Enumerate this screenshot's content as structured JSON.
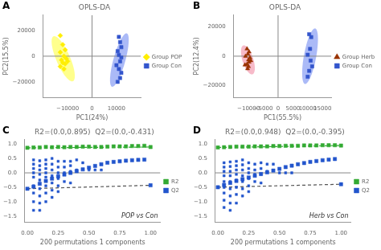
{
  "chart_data": [
    {
      "type": "scatter",
      "title": "OPLS-DA",
      "xlabel": "PC1(24%)",
      "ylabel": "PC2(15.5%)",
      "annotations": [
        "A"
      ],
      "legend": "right",
      "grid": false,
      "series": [
        {
          "name": "Group POP",
          "color": "#FFEE00",
          "marker": "diamond",
          "x": [
            -13000,
            -12000,
            -11000,
            -13000,
            -11500,
            -12500,
            -10500,
            -11000,
            -12000,
            -13000,
            -11500,
            -10000
          ],
          "y": [
            16000,
            9000,
            5000,
            3000,
            0,
            -3000,
            -2000,
            -6000,
            -5000,
            -8000,
            -10000,
            -4000
          ]
        },
        {
          "name": "Group Con",
          "color": "#3355CC",
          "marker": "square",
          "x": [
            11000,
            11500,
            12000,
            10500,
            11000,
            12000,
            11500,
            10000,
            11000,
            12000,
            11500,
            10500
          ],
          "y": [
            15000,
            11000,
            7000,
            4000,
            1000,
            -1000,
            -4000,
            -7000,
            -10000,
            -13000,
            -17000,
            -20000
          ]
        }
      ],
      "ellipses": [
        {
          "cx": -11800,
          "cy": -2000,
          "width": 6000,
          "height": 36000,
          "angle": 12,
          "color": "#FFFF00"
        },
        {
          "cx": 11200,
          "cy": -3000,
          "width": 5000,
          "height": 42000,
          "angle": -8,
          "color": "#4466EE"
        }
      ],
      "hlines": [
        0
      ],
      "vlines": [
        0
      ],
      "xlim": [
        -20000,
        20000
      ],
      "ylim": [
        -32000,
        32000
      ],
      "xticks": [
        {
          "value": -10000,
          "label": "−10000"
        },
        0,
        10000
      ],
      "yticks": [
        {
          "value": -20000,
          "label": "−20000"
        },
        0,
        20000
      ]
    },
    {
      "type": "scatter",
      "title": "OPLS-DA",
      "xlabel": "PC1(55.5%)",
      "ylabel": "PC2(12.4%)",
      "annotations": [
        "B"
      ],
      "legend": "right",
      "grid": false,
      "series": [
        {
          "name": "Group Herb",
          "color": "#993300",
          "marker": "triangle",
          "x": [
            -10500,
            -9800,
            -10200,
            -11000,
            -9500,
            -10000,
            -9800,
            -10500,
            -10000,
            -11200,
            -9200,
            -10300
          ],
          "y": [
            5000,
            3000,
            1500,
            0,
            -1000,
            -2500,
            -4000,
            -5500,
            -7000,
            -6000,
            -3000,
            -8500
          ]
        },
        {
          "name": "Group Con",
          "color": "#3355CC",
          "marker": "square",
          "x": [
            10500,
            11200,
            10800,
            10000,
            11000,
            11500,
            10500,
            10000
          ],
          "y": [
            15000,
            13000,
            5000,
            1000,
            -3000,
            -7000,
            -10000,
            -14000
          ]
        }
      ],
      "ellipses": [
        {
          "cx": -10200,
          "cy": -2500,
          "width": 3800,
          "height": 20000,
          "angle": 8,
          "color": "#EE6688"
        },
        {
          "cx": 10800,
          "cy": 0,
          "width": 4200,
          "height": 38000,
          "angle": -5,
          "color": "#4466EE"
        }
      ],
      "hlines": [
        0
      ],
      "vlines": [
        0
      ],
      "xlim": [
        -15000,
        18000
      ],
      "ylim": [
        -28000,
        28000
      ],
      "xticks": [
        {
          "value": -10000,
          "label": "−10000"
        },
        {
          "value": -5000,
          "label": "−5000"
        },
        0,
        5000,
        10000,
        15000
      ],
      "yticks": [
        {
          "value": -20000,
          "label": "−20000"
        },
        0,
        20000
      ]
    },
    {
      "type": "scatter",
      "title": "R2=(0.0,0.895)  Q2=(0.0,-0.431)",
      "xlabel": "200 permutations 1 components",
      "annotations": [
        "C",
        "POP vs Con"
      ],
      "legend": "right",
      "grid": false,
      "series": [
        {
          "type": "scatter",
          "color": "#2255CC",
          "marker": "square",
          "x": [
            0.05,
            0.05,
            0.05,
            0.05,
            0.05,
            0.05,
            0.05,
            0.05,
            0.05,
            0.1,
            0.1,
            0.1,
            0.1,
            0.1,
            0.1,
            0.1,
            0.1,
            0.1,
            0.15,
            0.15,
            0.15,
            0.15,
            0.15,
            0.15,
            0.15,
            0.15,
            0.2,
            0.2,
            0.2,
            0.2,
            0.2,
            0.2,
            0.2,
            0.25,
            0.25,
            0.25,
            0.25,
            0.25,
            0.25,
            0.3,
            0.3,
            0.3,
            0.3,
            0.35,
            0.35,
            0.35,
            0.35,
            0.4,
            0.4,
            0.45,
            0.5,
            0.55,
            0.6
          ],
          "y": [
            0.45,
            0.3,
            0.15,
            0.0,
            -0.15,
            -0.45,
            -0.7,
            -1.0,
            -1.3,
            0.42,
            0.25,
            0.1,
            -0.05,
            -0.25,
            -0.55,
            -0.8,
            -1.05,
            -1.3,
            0.45,
            0.3,
            0.15,
            0.0,
            -0.15,
            -0.45,
            -0.7,
            -1.0,
            0.5,
            0.3,
            0.1,
            -0.1,
            -0.35,
            -0.6,
            -0.85,
            0.4,
            0.2,
            0.0,
            -0.2,
            -0.45,
            -0.65,
            0.4,
            0.2,
            0.0,
            -0.3,
            0.4,
            0.25,
            0.05,
            -0.35,
            0.45,
            0.1,
            0.35,
            0.1,
            0.1,
            0.1
          ]
        },
        {
          "name": "R2",
          "type": "scatter",
          "color": "#33AA33",
          "marker": "square",
          "x": [
            0.0,
            0.05,
            0.1,
            0.15,
            0.2,
            0.25,
            0.3,
            0.35,
            0.4,
            0.45,
            0.5,
            0.55,
            0.6,
            0.65,
            0.7,
            0.75,
            0.8,
            0.85,
            0.9,
            0.95,
            1.0
          ],
          "y": [
            0.87,
            0.88,
            0.88,
            0.9,
            0.89,
            0.9,
            0.89,
            0.9,
            0.9,
            0.91,
            0.91,
            0.9,
            0.9,
            0.91,
            0.92,
            0.92,
            0.92,
            0.93,
            0.93,
            0.94,
            0.895
          ]
        },
        {
          "type": "line",
          "color": "#33AA33",
          "line_style": "dashed",
          "x": [
            0.0,
            1.0
          ],
          "y": [
            0.87,
            0.895
          ]
        },
        {
          "name": "Q2",
          "type": "scatter",
          "color": "#2255CC",
          "marker": "square",
          "x": [
            0.0,
            0.05,
            0.1,
            0.15,
            0.2,
            0.25,
            0.3,
            0.35,
            0.4,
            0.45,
            0.5,
            0.55,
            0.6,
            0.65,
            0.7,
            0.75,
            0.8,
            0.85,
            0.9,
            0.95,
            1.0
          ],
          "y": [
            -0.55,
            -0.48,
            -0.38,
            -0.28,
            -0.2,
            -0.12,
            -0.06,
            0.0,
            0.06,
            0.12,
            0.18,
            0.24,
            0.3,
            0.35,
            0.38,
            0.4,
            0.42,
            0.44,
            0.45,
            0.46,
            -0.431
          ]
        },
        {
          "type": "line",
          "color": "#555555",
          "line_style": "dashed",
          "x": [
            0.0,
            1.0
          ],
          "y": [
            -0.55,
            -0.431
          ]
        }
      ],
      "hlines": [
        0
      ],
      "xlim": [
        -0.02,
        1.08
      ],
      "ylim": [
        -1.7,
        1.15
      ],
      "xticks": [
        {
          "value": 0.0,
          "label": "0.00"
        },
        {
          "value": 0.25,
          "label": "0.25"
        },
        {
          "value": 0.5,
          "label": "0.50"
        },
        {
          "value": 0.75,
          "label": "0.75"
        },
        {
          "value": 1.0,
          "label": "1.00"
        }
      ],
      "yticks": [
        {
          "value": -1.5,
          "label": "−1.5"
        },
        {
          "value": -1.0,
          "label": "−1.0"
        },
        {
          "value": -0.5,
          "label": "−0.5"
        },
        {
          "value": 0.0,
          "label": "0.0"
        },
        0.5,
        {
          "value": 1.0,
          "label": "1.0"
        }
      ]
    },
    {
      "type": "scatter",
      "title": "R2=(0.0,0.948)  Q2=(0.0,-0.395)",
      "xlabel": "200 permutations 1 components",
      "annotations": [
        "D",
        "Herb vs Con"
      ],
      "legend": "right",
      "grid": false,
      "series": [
        {
          "type": "scatter",
          "color": "#2255CC",
          "marker": "square",
          "x": [
            0.05,
            0.05,
            0.05,
            0.05,
            0.05,
            0.05,
            0.05,
            0.05,
            0.05,
            0.1,
            0.1,
            0.1,
            0.1,
            0.1,
            0.1,
            0.1,
            0.1,
            0.1,
            0.15,
            0.15,
            0.15,
            0.15,
            0.15,
            0.15,
            0.15,
            0.15,
            0.2,
            0.2,
            0.2,
            0.2,
            0.2,
            0.2,
            0.2,
            0.25,
            0.25,
            0.25,
            0.25,
            0.25,
            0.25,
            0.3,
            0.3,
            0.3,
            0.3,
            0.35,
            0.35,
            0.35,
            0.35,
            0.4,
            0.4,
            0.45,
            0.5,
            0.55,
            0.6
          ],
          "y": [
            0.35,
            0.2,
            0.05,
            -0.1,
            -0.3,
            -0.5,
            -0.7,
            -0.95,
            -1.2,
            0.38,
            0.22,
            0.05,
            -0.1,
            -0.3,
            -0.55,
            -0.8,
            -1.05,
            -1.3,
            0.4,
            0.25,
            0.1,
            -0.05,
            -0.25,
            -0.5,
            -0.75,
            -1.05,
            0.45,
            0.28,
            0.1,
            -0.1,
            -0.3,
            -0.55,
            -0.8,
            0.35,
            0.15,
            0.0,
            -0.2,
            -0.45,
            -0.65,
            0.3,
            0.1,
            -0.05,
            -0.3,
            0.35,
            0.15,
            -0.05,
            -0.35,
            0.3,
            0.05,
            0.3,
            0.0,
            0.0,
            0.0
          ]
        },
        {
          "name": "R2",
          "type": "scatter",
          "color": "#33AA33",
          "marker": "square",
          "x": [
            0.0,
            0.05,
            0.1,
            0.15,
            0.2,
            0.25,
            0.3,
            0.35,
            0.4,
            0.45,
            0.5,
            0.55,
            0.6,
            0.65,
            0.7,
            0.75,
            0.8,
            0.85,
            0.9,
            0.95,
            1.0
          ],
          "y": [
            0.88,
            0.89,
            0.9,
            0.91,
            0.91,
            0.91,
            0.92,
            0.92,
            0.92,
            0.93,
            0.93,
            0.94,
            0.94,
            0.94,
            0.95,
            0.95,
            0.95,
            0.96,
            0.96,
            0.96,
            0.948
          ]
        },
        {
          "type": "line",
          "color": "#33AA33",
          "line_style": "dashed",
          "x": [
            0.0,
            1.0
          ],
          "y": [
            0.88,
            0.948
          ]
        },
        {
          "name": "Q2",
          "type": "scatter",
          "color": "#2255CC",
          "marker": "square",
          "x": [
            0.0,
            0.05,
            0.1,
            0.15,
            0.2,
            0.25,
            0.3,
            0.35,
            0.4,
            0.45,
            0.5,
            0.55,
            0.6,
            0.65,
            0.7,
            0.75,
            0.8,
            0.85,
            0.9,
            0.95,
            1.0
          ],
          "y": [
            -0.5,
            -0.42,
            -0.35,
            -0.28,
            -0.22,
            -0.16,
            -0.1,
            -0.04,
            0.02,
            0.08,
            0.14,
            0.2,
            0.25,
            0.3,
            0.34,
            0.38,
            0.41,
            0.44,
            0.46,
            0.48,
            -0.395
          ]
        },
        {
          "type": "line",
          "color": "#555555",
          "line_style": "dashed",
          "x": [
            0.0,
            1.0
          ],
          "y": [
            -0.5,
            -0.395
          ]
        }
      ],
      "hlines": [
        0
      ],
      "xlim": [
        -0.02,
        1.08
      ],
      "ylim": [
        -1.7,
        1.15
      ],
      "xticks": [
        {
          "value": 0.0,
          "label": "0.00"
        },
        {
          "value": 0.25,
          "label": "0.25"
        },
        {
          "value": 0.5,
          "label": "0.50"
        },
        {
          "value": 0.75,
          "label": "0.75"
        },
        {
          "value": 1.0,
          "label": "1.00"
        }
      ],
      "yticks": [
        {
          "value": -1.5,
          "label": "−1.5"
        },
        {
          "value": -1.0,
          "label": "−1.0"
        },
        {
          "value": -0.5,
          "label": "−0.5"
        },
        {
          "value": 0.0,
          "label": "0.0"
        },
        0.5,
        {
          "value": 1.0,
          "label": "1.0"
        }
      ]
    }
  ]
}
